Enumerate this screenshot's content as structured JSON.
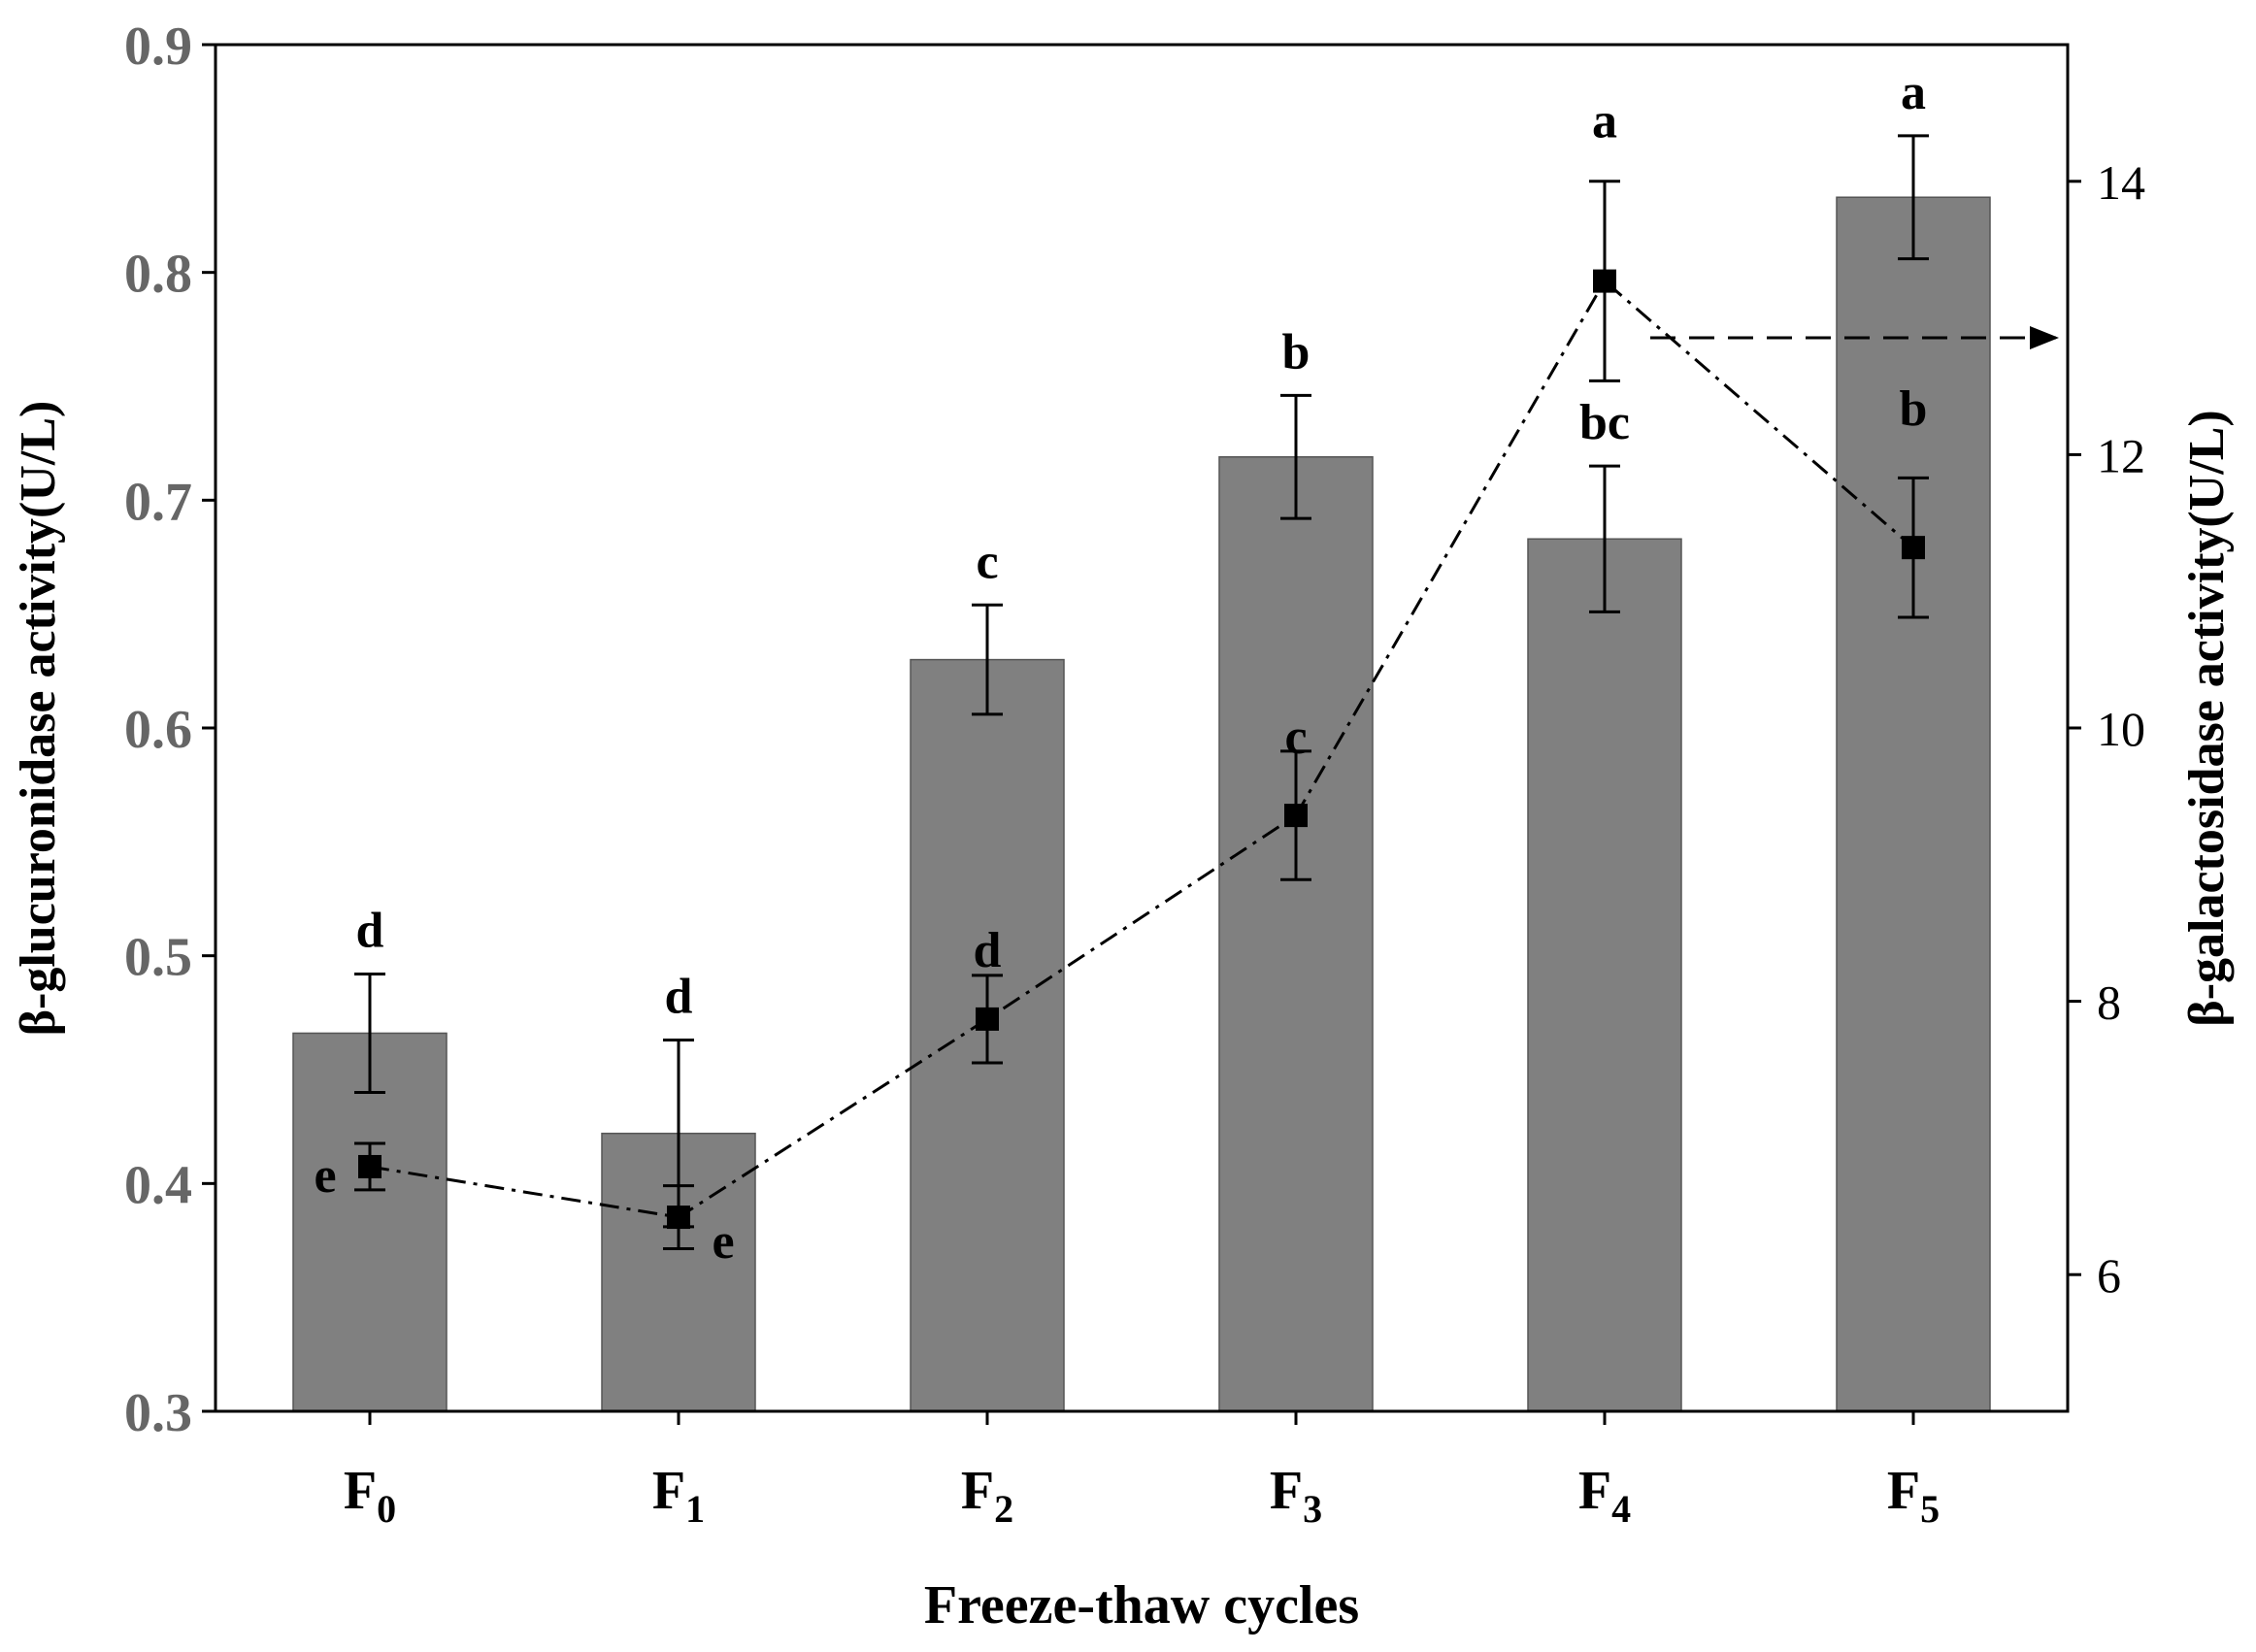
{
  "chart_data": {
    "type": "bar",
    "categories": [
      "F0",
      "F1",
      "F2",
      "F3",
      "F4",
      "F5"
    ],
    "category_labels": [
      {
        "base": "F",
        "sub": "0"
      },
      {
        "base": "F",
        "sub": "1"
      },
      {
        "base": "F",
        "sub": "2"
      },
      {
        "base": "F",
        "sub": "3"
      },
      {
        "base": "F",
        "sub": "4"
      },
      {
        "base": "F",
        "sub": "5"
      }
    ],
    "xlabel": "Freeze-thaw cycles",
    "ylabel_left": "β-glucuronidase activity(U/L)",
    "ylabel_right": "β-galactosidase activity(U/L)",
    "ylim_left": [
      0.3,
      0.9
    ],
    "yticks_left": [
      "0.3",
      "0.4",
      "0.5",
      "0.6",
      "0.7",
      "0.8",
      "0.9"
    ],
    "ylim_right": [
      5,
      15
    ],
    "yticks_right": [
      "6",
      "8",
      "10",
      "12",
      "14"
    ],
    "series": [
      {
        "name": "β-glucuronidase",
        "kind": "bar",
        "axis": "left",
        "color": "#808080",
        "values": [
          0.466,
          0.422,
          0.63,
          0.719,
          0.683,
          0.833
        ],
        "errors": [
          0.026,
          0.041,
          0.024,
          0.027,
          0.032,
          0.027
        ],
        "letters": [
          "d",
          "d",
          "c",
          "b",
          "bc",
          "a"
        ]
      },
      {
        "name": "β-galactosidase",
        "kind": "line",
        "axis": "right",
        "color": "#000000",
        "values": [
          6.79,
          6.42,
          7.87,
          9.36,
          13.27,
          11.32
        ],
        "errors": [
          0.17,
          0.23,
          0.32,
          0.47,
          0.73,
          0.51
        ],
        "letters": [
          "e",
          "e",
          "d",
          "c",
          "a",
          "b"
        ]
      }
    ]
  }
}
